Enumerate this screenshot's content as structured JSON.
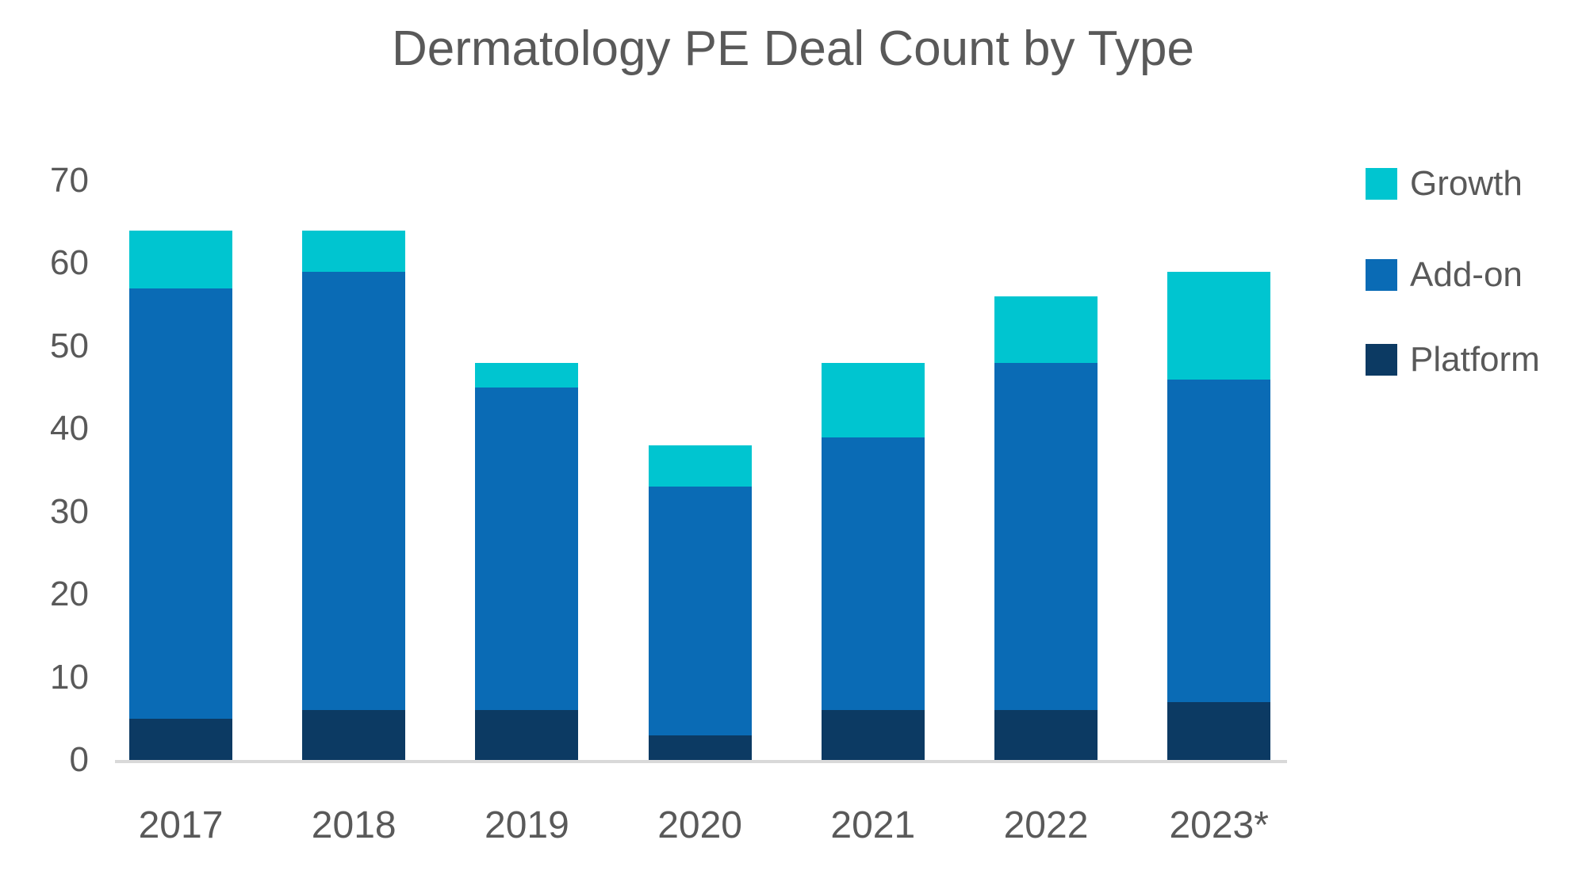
{
  "title": "Dermatology PE Deal Count by Type",
  "colors": {
    "growth": "#00C5D0",
    "addon": "#0A6BB5",
    "platform": "#0C3A63",
    "text": "#595959",
    "axis_line": "#D9D9D9",
    "background": "#FFFFFF"
  },
  "chart_data": {
    "type": "bar",
    "stacked": true,
    "title": "Dermatology PE Deal Count by Type",
    "categories": [
      "2017",
      "2018",
      "2019",
      "2020",
      "2021",
      "2022",
      "2023*"
    ],
    "series": [
      {
        "name": "Platform",
        "color": "#0C3A63",
        "values": [
          5,
          6,
          6,
          3,
          6,
          6,
          7
        ]
      },
      {
        "name": "Add-on",
        "color": "#0A6BB5",
        "values": [
          52,
          53,
          39,
          30,
          33,
          42,
          39
        ]
      },
      {
        "name": "Growth",
        "color": "#00C5D0",
        "values": [
          7,
          5,
          3,
          5,
          9,
          8,
          13
        ]
      }
    ],
    "totals": [
      64,
      64,
      48,
      38,
      48,
      56,
      59
    ],
    "xlabel": "",
    "ylabel": "",
    "ylim": [
      0,
      70
    ],
    "yticks": [
      0,
      10,
      20,
      30,
      40,
      50,
      60,
      70
    ],
    "grid": false,
    "legend_position": "right"
  },
  "legend": {
    "items": [
      {
        "label": "Growth",
        "color": "#00C5D0"
      },
      {
        "label": "Add-on",
        "color": "#0A6BB5"
      },
      {
        "label": "Platform",
        "color": "#0C3A63"
      }
    ]
  }
}
